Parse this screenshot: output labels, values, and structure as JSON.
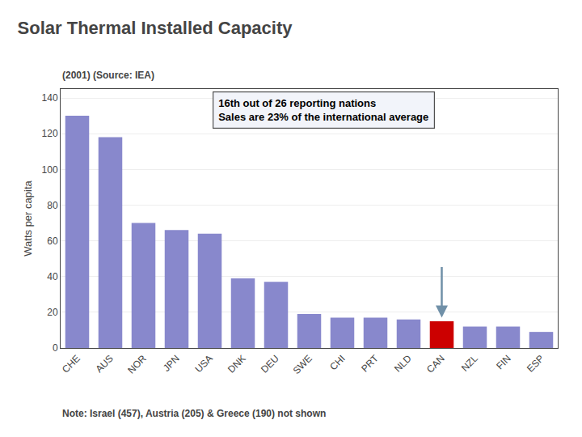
{
  "chart_data": {
    "type": "bar",
    "title": "Solar Thermal Installed Capacity",
    "subtitle": "(2001) (Source: IEA)",
    "ylabel": "Watts per capita",
    "categories": [
      "CHE",
      "AUS",
      "NOR",
      "JPN",
      "USA",
      "DNK",
      "DEU",
      "SWE",
      "CHI",
      "PRT",
      "NLD",
      "CAN",
      "NZL",
      "FIN",
      "ESP"
    ],
    "values": [
      130,
      118,
      70,
      66,
      64,
      39,
      37,
      19,
      17,
      17,
      16,
      15,
      12,
      12,
      9
    ],
    "colors": [
      "#8888cc",
      "#8888cc",
      "#8888cc",
      "#8888cc",
      "#8888cc",
      "#8888cc",
      "#8888cc",
      "#8888cc",
      "#8888cc",
      "#8888cc",
      "#8888cc",
      "#cc0000",
      "#8888cc",
      "#8888cc",
      "#8888cc"
    ],
    "ylim": [
      0,
      145
    ],
    "yticks": [
      0,
      20,
      40,
      60,
      80,
      100,
      120,
      140
    ],
    "grid": true,
    "annotations": [
      "16th out of 26 reporting nations",
      "Sales are 23% of the international average"
    ],
    "arrow": {
      "category": "CAN",
      "y_start": 46,
      "y_end": 17
    },
    "note": "Note: Israel (457), Austria (205) & Greece (190) not shown"
  }
}
